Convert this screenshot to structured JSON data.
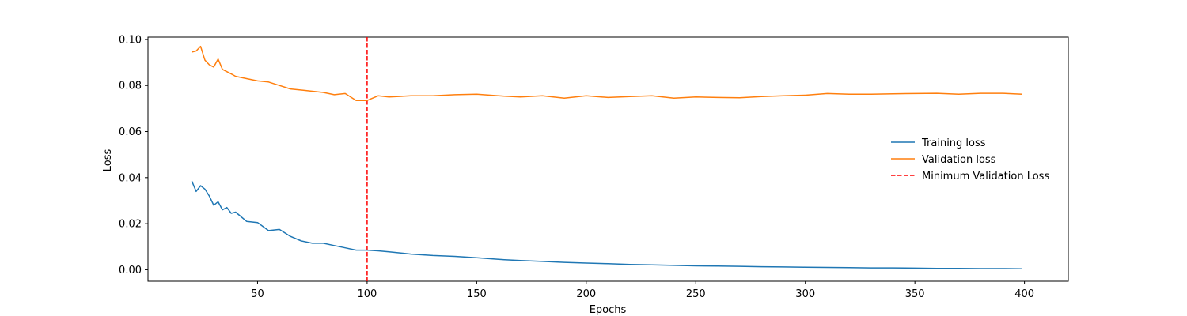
{
  "chart_data": {
    "type": "line",
    "title": "",
    "xlabel": "Epochs",
    "ylabel": "Loss",
    "xlim": [
      0,
      420
    ],
    "ylim": [
      -0.005,
      0.101
    ],
    "xticks": [
      50,
      100,
      150,
      200,
      250,
      300,
      350,
      400
    ],
    "xtick_labels": [
      "50",
      "100",
      "150",
      "200",
      "250",
      "300",
      "350",
      "400"
    ],
    "yticks": [
      0.0,
      0.02,
      0.04,
      0.06,
      0.08,
      0.1
    ],
    "ytick_labels": [
      "0.00",
      "0.02",
      "0.04",
      "0.06",
      "0.08",
      "0.10"
    ],
    "grid": false,
    "legend_position": "center-right",
    "vline": {
      "name": "Minimum Validation Loss",
      "x": 100,
      "color": "#ff0000"
    },
    "series": [
      {
        "name": "Training loss",
        "color": "#1f77b4",
        "x": [
          20,
          22,
          24,
          26,
          28,
          30,
          32,
          34,
          36,
          38,
          40,
          45,
          50,
          55,
          60,
          65,
          70,
          75,
          80,
          85,
          90,
          95,
          100,
          105,
          110,
          120,
          130,
          140,
          150,
          160,
          170,
          180,
          190,
          200,
          210,
          220,
          230,
          240,
          250,
          260,
          270,
          280,
          290,
          300,
          310,
          320,
          330,
          340,
          350,
          360,
          370,
          380,
          390,
          399
        ],
        "values": [
          0.0385,
          0.034,
          0.0365,
          0.035,
          0.032,
          0.028,
          0.0295,
          0.026,
          0.027,
          0.0245,
          0.025,
          0.021,
          0.0205,
          0.017,
          0.0175,
          0.0145,
          0.0125,
          0.0115,
          0.0115,
          0.0105,
          0.0095,
          0.0085,
          0.0085,
          0.0082,
          0.0078,
          0.0068,
          0.0062,
          0.0058,
          0.0052,
          0.0045,
          0.004,
          0.0036,
          0.0032,
          0.0029,
          0.0026,
          0.0023,
          0.0021,
          0.0019,
          0.0017,
          0.0016,
          0.0015,
          0.0013,
          0.0012,
          0.0011,
          0.001,
          0.0009,
          0.0008,
          0.0008,
          0.0007,
          0.0006,
          0.0006,
          0.0005,
          0.0005,
          0.0004
        ]
      },
      {
        "name": "Validation loss",
        "color": "#ff7f0e",
        "x": [
          20,
          22,
          24,
          26,
          28,
          30,
          32,
          34,
          36,
          38,
          40,
          45,
          50,
          55,
          60,
          65,
          70,
          75,
          80,
          85,
          90,
          95,
          100,
          105,
          110,
          120,
          130,
          140,
          150,
          160,
          170,
          180,
          190,
          200,
          210,
          220,
          230,
          240,
          250,
          260,
          270,
          280,
          290,
          300,
          310,
          320,
          330,
          340,
          350,
          360,
          370,
          380,
          390,
          399
        ],
        "values": [
          0.0945,
          0.095,
          0.097,
          0.091,
          0.089,
          0.088,
          0.0915,
          0.087,
          0.086,
          0.085,
          0.084,
          0.083,
          0.082,
          0.0815,
          0.08,
          0.0785,
          0.078,
          0.0775,
          0.077,
          0.076,
          0.0765,
          0.0735,
          0.0735,
          0.0755,
          0.075,
          0.0755,
          0.0755,
          0.076,
          0.0762,
          0.0755,
          0.075,
          0.0755,
          0.0745,
          0.0755,
          0.0748,
          0.0752,
          0.0755,
          0.0745,
          0.075,
          0.0748,
          0.0747,
          0.0752,
          0.0755,
          0.0758,
          0.0765,
          0.0762,
          0.0762,
          0.0764,
          0.0765,
          0.0766,
          0.0762,
          0.0766,
          0.0766,
          0.0762
        ]
      }
    ]
  }
}
